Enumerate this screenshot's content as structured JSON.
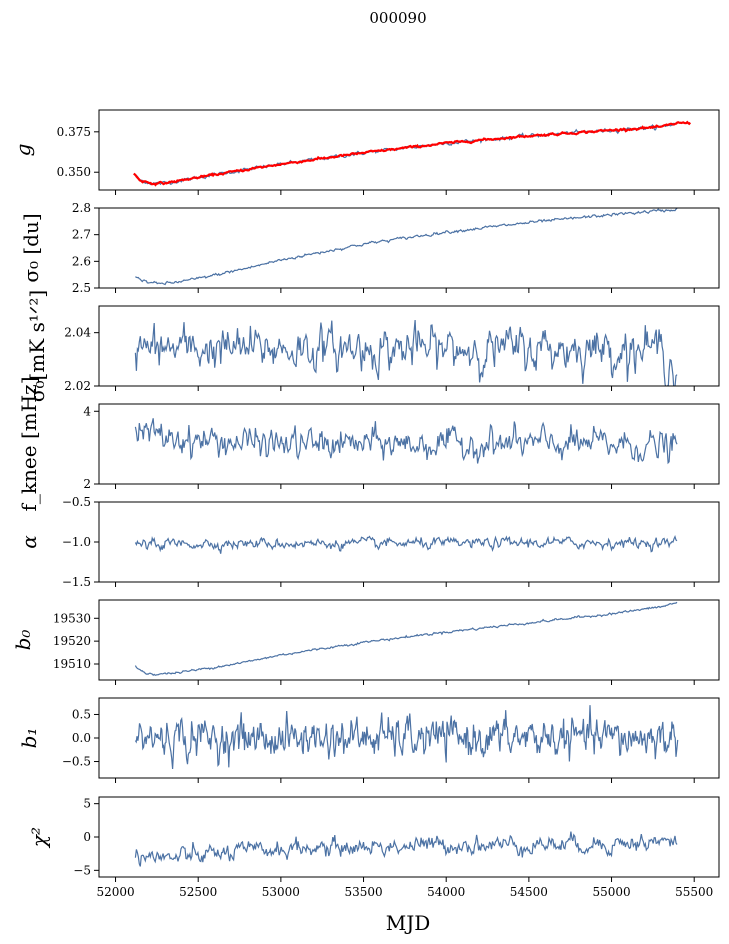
{
  "figure": {
    "title": "000090",
    "xlabel": "MJD",
    "x_ticks": [
      52000,
      52500,
      53000,
      53500,
      54000,
      54500,
      55000,
      55500
    ],
    "xlim": [
      51900,
      55650
    ],
    "series_color": "#4c72a4",
    "overlay_color": "#ff0000"
  },
  "chart_data": [
    {
      "type": "line",
      "id": "g",
      "ylabel": "g",
      "ylim": [
        0.339,
        0.3885
      ],
      "y_ticks": [
        0.35,
        0.375
      ],
      "y_tick_labels": [
        "0.350",
        "0.375"
      ],
      "series": [
        {
          "x": [
            52110,
            52150,
            52200,
            52250,
            52300,
            52400,
            52600,
            53000,
            53500,
            54000,
            54500,
            55000,
            55300,
            55400
          ],
          "values": [
            0.349,
            0.345,
            0.3435,
            0.343,
            0.3433,
            0.345,
            0.3485,
            0.355,
            0.362,
            0.368,
            0.3725,
            0.376,
            0.378,
            0.3805
          ]
        },
        {
          "name": "",
          "style": "overlay",
          "x": [
            52110,
            52150,
            52200,
            52250,
            52300,
            52400,
            52600,
            53000,
            53500,
            54000,
            54500,
            55000,
            55300,
            55400,
            55480
          ],
          "values": [
            0.349,
            0.345,
            0.3435,
            0.343,
            0.3433,
            0.345,
            0.3485,
            0.355,
            0.362,
            0.368,
            0.3725,
            0.376,
            0.378,
            0.3805,
            0.3805
          ]
        }
      ]
    },
    {
      "type": "line",
      "id": "sigma0_du",
      "ylabel": "σ₀ [du]",
      "ylim": [
        2.5,
        2.8
      ],
      "y_ticks": [
        2.5,
        2.6,
        2.7,
        2.8
      ],
      "y_tick_labels": [
        "2.5",
        "2.6",
        "2.7",
        "2.8"
      ],
      "series": [
        {
          "x": [
            52120,
            52180,
            52250,
            52350,
            52500,
            52800,
            53000,
            53500,
            54000,
            54500,
            55000,
            55300,
            55400
          ],
          "values": [
            2.545,
            2.525,
            2.515,
            2.52,
            2.535,
            2.575,
            2.605,
            2.665,
            2.71,
            2.745,
            2.775,
            2.79,
            2.795
          ]
        }
      ]
    },
    {
      "type": "line",
      "id": "sigma0_mk",
      "ylabel": "σ₀[mK s¹ᐟ²]",
      "ylim": [
        2.02,
        2.05
      ],
      "y_ticks": [
        2.02,
        2.04
      ],
      "y_tick_labels": [
        "2.02",
        "2.04"
      ],
      "series": [
        {
          "x": [
            52120,
            52500,
            53000,
            53500,
            54000,
            54500,
            54900,
            55000,
            55300,
            55400
          ],
          "values": [
            2.034,
            2.034,
            2.034,
            2.034,
            2.034,
            2.034,
            2.034,
            2.034,
            2.034,
            2.025
          ]
        }
      ]
    },
    {
      "type": "line",
      "id": "fknee",
      "ylabel": "f_knee [mHz]",
      "ylim": [
        2.0,
        4.2
      ],
      "y_ticks": [
        2,
        4
      ],
      "y_tick_labels": [
        "2",
        "4"
      ],
      "series": [
        {
          "x": [
            52120,
            52500,
            53000,
            53500,
            54000,
            54500,
            55000,
            55400
          ],
          "values": [
            3.4,
            3.2,
            3.1,
            3.1,
            3.1,
            3.1,
            3.1,
            3.0
          ]
        }
      ]
    },
    {
      "type": "line",
      "id": "alpha",
      "ylabel": "α",
      "ylim": [
        -1.5,
        -0.5
      ],
      "y_ticks": [
        -1.5,
        -1.0,
        -0.5
      ],
      "y_tick_labels": [
        "−1.5",
        "−1.0",
        "−0.5"
      ],
      "series": [
        {
          "x": [
            52120,
            52500,
            53000,
            53500,
            54000,
            54500,
            55000,
            55400
          ],
          "values": [
            -1.03,
            -1.02,
            -1.02,
            -1.02,
            -1.02,
            -1.01,
            -1.01,
            -1.01
          ]
        }
      ]
    },
    {
      "type": "line",
      "id": "b0",
      "ylabel": "b₀",
      "ylim": [
        19503,
        19538
      ],
      "y_ticks": [
        19510,
        19520,
        19530
      ],
      "y_tick_labels": [
        "19510",
        "19520",
        "19530"
      ],
      "series": [
        {
          "x": [
            52120,
            52180,
            52250,
            52350,
            52500,
            52800,
            53000,
            53500,
            54000,
            54500,
            55000,
            55300,
            55400
          ],
          "values": [
            19509,
            19506,
            19505.5,
            19506,
            19507.5,
            19511,
            19514,
            19519.5,
            19524,
            19528,
            19532,
            19535,
            19537
          ]
        }
      ]
    },
    {
      "type": "line",
      "id": "b1",
      "ylabel": "b₁",
      "ylim": [
        -0.85,
        0.85
      ],
      "y_ticks": [
        -0.5,
        0.0,
        0.5
      ],
      "y_tick_labels": [
        "−0.5",
        "0.0",
        "0.5"
      ],
      "series": [
        {
          "x": [
            52120,
            52500,
            53000,
            53500,
            54000,
            54500,
            55000,
            55400
          ],
          "values": [
            0.0,
            0.0,
            0.0,
            0.0,
            0.0,
            0.0,
            0.0,
            0.0
          ]
        }
      ]
    },
    {
      "type": "line",
      "id": "chi2",
      "ylabel": "χ²",
      "ylim": [
        -6,
        6
      ],
      "y_ticks": [
        -5,
        0,
        5
      ],
      "y_tick_labels": [
        "−5",
        "0",
        "5"
      ],
      "series": [
        {
          "x": [
            52120,
            52300,
            52500,
            53000,
            53500,
            54000,
            54500,
            55000,
            55400
          ],
          "values": [
            -2.5,
            -3.3,
            -2.7,
            -1.8,
            -1.5,
            -1.2,
            -1.1,
            -1.0,
            -0.7
          ]
        }
      ]
    }
  ]
}
